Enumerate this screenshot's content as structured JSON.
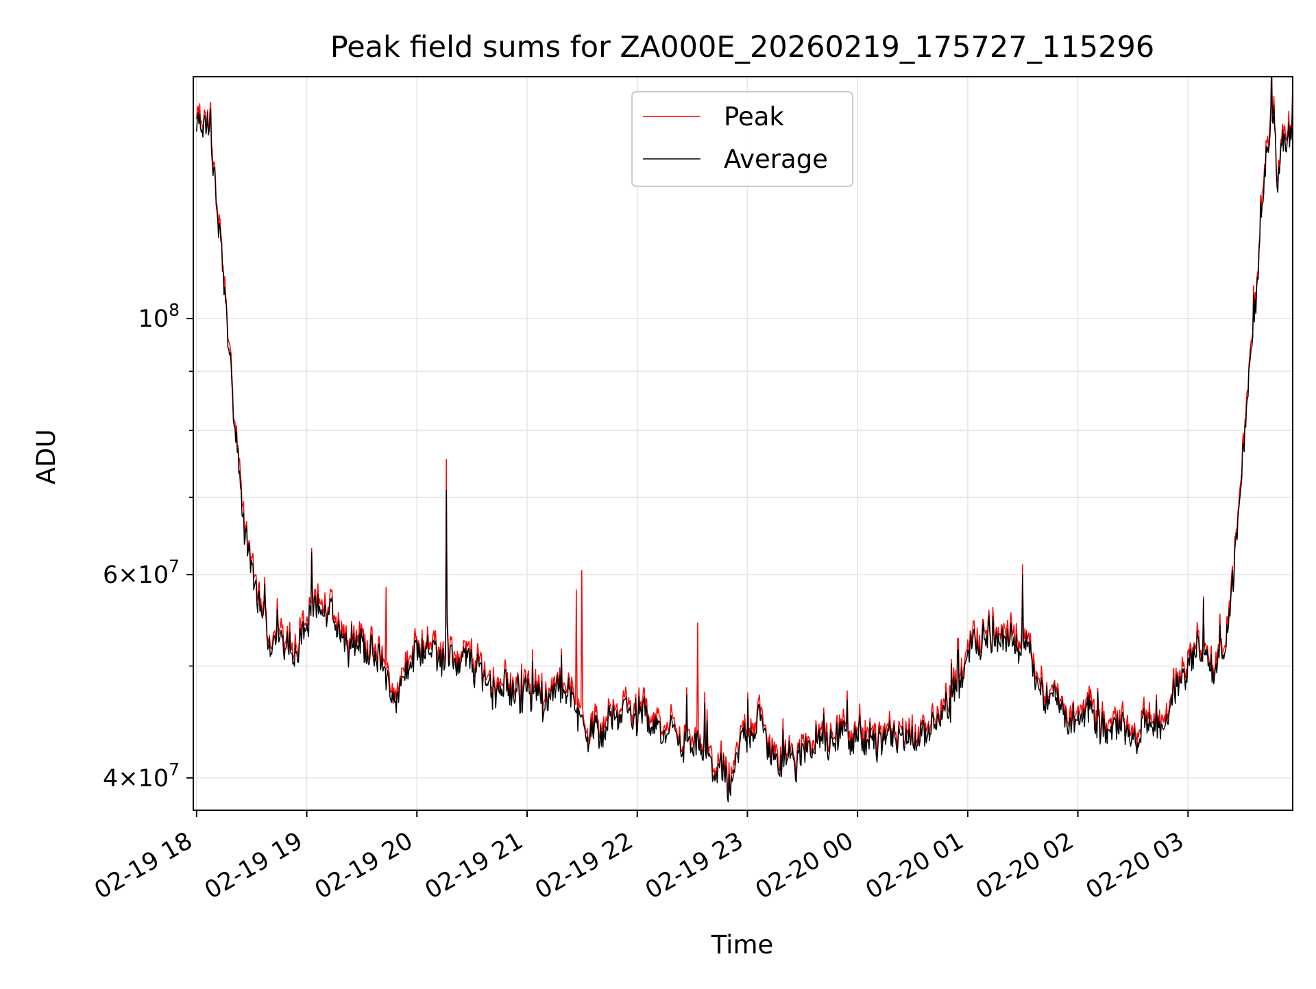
{
  "chart_data": {
    "type": "line",
    "title": "Peak field sums for ZA000E_20260219_175727_115296",
    "xlabel": "Time",
    "ylabel": "ADU",
    "yscale": "log",
    "ylim": [
      37500000,
      162000000
    ],
    "x_unit": "hours since 02-19 18:00",
    "xlim": [
      -0.03,
      9.95
    ],
    "grid": true,
    "legend_position": "top-center",
    "x_ticks": [
      {
        "value": 0,
        "label": "02-19 18"
      },
      {
        "value": 1,
        "label": "02-19 19"
      },
      {
        "value": 2,
        "label": "02-19 20"
      },
      {
        "value": 3,
        "label": "02-19 21"
      },
      {
        "value": 4,
        "label": "02-19 22"
      },
      {
        "value": 5,
        "label": "02-19 23"
      },
      {
        "value": 6,
        "label": "02-20 00"
      },
      {
        "value": 7,
        "label": "02-20 01"
      },
      {
        "value": 8,
        "label": "02-20 02"
      },
      {
        "value": 9,
        "label": "02-20 03"
      }
    ],
    "y_ticks_major": [
      {
        "value": 100000000,
        "base": "10",
        "exp": "8",
        "mant": ""
      },
      {
        "value": 60000000,
        "base": "10",
        "exp": "7",
        "mant": "6×"
      },
      {
        "value": 40000000,
        "base": "10",
        "exp": "7",
        "mant": "4×"
      }
    ],
    "y_ticks_minor": [
      50000000,
      70000000,
      80000000,
      90000000
    ],
    "series": [
      {
        "name": "Peak",
        "color": "#ff0000",
        "spikes": [
          {
            "x": 2.27,
            "y": 75500000
          },
          {
            "x": 1.72,
            "y": 58500000
          },
          {
            "x": 3.45,
            "y": 58200000
          },
          {
            "x": 3.5,
            "y": 60500000
          },
          {
            "x": 4.55,
            "y": 54500000
          },
          {
            "x": 7.5,
            "y": 61200000
          }
        ]
      },
      {
        "name": "Average",
        "color": "#000000",
        "spikes": [
          {
            "x": 2.27,
            "y": 71000000
          },
          {
            "x": 7.5,
            "y": 60000000
          }
        ]
      }
    ],
    "base_curve": [
      [
        0.0,
        146000000
      ],
      [
        0.05,
        148000000
      ],
      [
        0.1,
        147000000
      ],
      [
        0.12,
        149000000
      ],
      [
        0.13,
        140000000
      ],
      [
        0.18,
        125000000
      ],
      [
        0.22,
        113000000
      ],
      [
        0.28,
        98000000
      ],
      [
        0.33,
        84000000
      ],
      [
        0.38,
        74000000
      ],
      [
        0.43,
        66000000
      ],
      [
        0.48,
        62000000
      ],
      [
        0.55,
        58500000
      ],
      [
        0.6,
        54500000
      ],
      [
        0.68,
        52500000
      ],
      [
        0.78,
        52000000
      ],
      [
        0.9,
        51500000
      ],
      [
        1.0,
        54000000
      ],
      [
        1.1,
        55500000
      ],
      [
        1.3,
        53500000
      ],
      [
        1.5,
        53000000
      ],
      [
        1.7,
        49000000
      ],
      [
        1.8,
        46000000
      ],
      [
        1.9,
        50000000
      ],
      [
        2.0,
        51000000
      ],
      [
        2.15,
        52000000
      ],
      [
        2.3,
        51000000
      ],
      [
        2.5,
        49500000
      ],
      [
        2.8,
        47500000
      ],
      [
        3.0,
        47500000
      ],
      [
        3.2,
        46500000
      ],
      [
        3.4,
        48000000
      ],
      [
        3.6,
        43500000
      ],
      [
        3.8,
        45500000
      ],
      [
        4.0,
        45000000
      ],
      [
        4.2,
        44500000
      ],
      [
        4.4,
        42500000
      ],
      [
        4.6,
        42000000
      ],
      [
        4.72,
        40500000
      ],
      [
        4.85,
        39500000
      ],
      [
        4.95,
        43000000
      ],
      [
        5.1,
        45000000
      ],
      [
        5.2,
        43000000
      ],
      [
        5.3,
        40500000
      ],
      [
        5.5,
        41500000
      ],
      [
        5.7,
        43500000
      ],
      [
        5.9,
        43500000
      ],
      [
        6.1,
        43000000
      ],
      [
        6.3,
        43000000
      ],
      [
        6.5,
        42500000
      ],
      [
        6.7,
        44500000
      ],
      [
        6.85,
        47000000
      ],
      [
        7.0,
        51000000
      ],
      [
        7.15,
        53000000
      ],
      [
        7.3,
        52500000
      ],
      [
        7.4,
        52500000
      ],
      [
        7.55,
        53000000
      ],
      [
        7.62,
        49000000
      ],
      [
        7.7,
        47500000
      ],
      [
        7.85,
        46000000
      ],
      [
        8.0,
        44000000
      ],
      [
        8.1,
        46500000
      ],
      [
        8.25,
        44000000
      ],
      [
        8.5,
        44000000
      ],
      [
        8.7,
        44000000
      ],
      [
        8.85,
        46000000
      ],
      [
        9.0,
        51000000
      ],
      [
        9.15,
        50500000
      ],
      [
        9.25,
        49000000
      ],
      [
        9.33,
        52000000
      ],
      [
        9.38,
        56000000
      ],
      [
        9.43,
        62000000
      ],
      [
        9.48,
        70000000
      ],
      [
        9.52,
        80000000
      ],
      [
        9.57,
        92000000
      ],
      [
        9.62,
        105000000
      ],
      [
        9.67,
        125000000
      ],
      [
        9.72,
        145000000
      ],
      [
        9.77,
        155000000
      ],
      [
        9.79,
        152000000
      ],
      [
        9.81,
        130000000
      ],
      [
        9.84,
        142000000
      ],
      [
        9.88,
        140000000
      ],
      [
        9.92,
        145000000
      ],
      [
        9.95,
        147000000
      ]
    ]
  },
  "legend": {
    "peak_label": "Peak",
    "average_label": "Average"
  }
}
